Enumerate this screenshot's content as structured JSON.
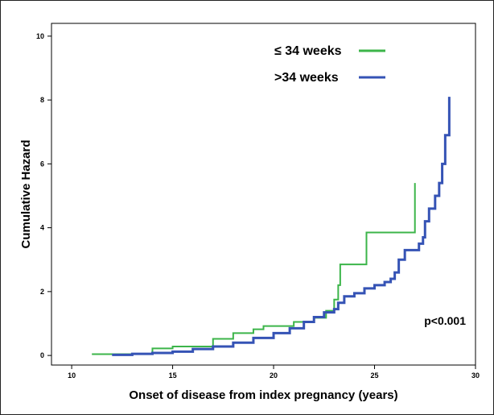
{
  "chart_data": {
    "type": "line",
    "title": "",
    "xlabel": "Onset of disease from index pregnancy (years)",
    "ylabel": "Cumulative Hazard",
    "xlim": [
      9,
      30
    ],
    "ylim": [
      -0.3,
      10.4
    ],
    "xticks": [
      10,
      15,
      20,
      25,
      30
    ],
    "yticks": [
      0,
      2,
      4,
      6,
      8,
      10
    ],
    "grid": false,
    "legend_position": "top-center",
    "annotation": "p<0.001",
    "series": [
      {
        "name": "≤ 34 weeks",
        "color": "#3cb54a",
        "step": true,
        "x": [
          11.0,
          14.0,
          15.0,
          17.0,
          18.0,
          19.0,
          19.5,
          21.0,
          22.0,
          22.6,
          23.0,
          23.2,
          23.3,
          24.6,
          27.0,
          27.0
        ],
        "y": [
          0.04,
          0.22,
          0.28,
          0.52,
          0.7,
          0.82,
          0.92,
          1.05,
          1.18,
          1.4,
          1.75,
          2.2,
          2.85,
          3.85,
          3.85,
          5.4
        ]
      },
      {
        "name": ">34 weeks",
        "color": "#3553b5",
        "step": true,
        "x": [
          12.0,
          13.0,
          14.0,
          15.0,
          16.0,
          17.0,
          18.0,
          19.0,
          20.0,
          20.8,
          21.5,
          22.0,
          22.5,
          23.0,
          23.2,
          23.5,
          24.0,
          24.5,
          25.0,
          25.5,
          25.8,
          26.0,
          26.2,
          26.5,
          27.0,
          27.2,
          27.4,
          27.5,
          27.7,
          28.0,
          28.2,
          28.35,
          28.5,
          28.7,
          28.7
        ],
        "y": [
          0.02,
          0.05,
          0.08,
          0.12,
          0.2,
          0.28,
          0.4,
          0.55,
          0.7,
          0.85,
          1.05,
          1.2,
          1.35,
          1.45,
          1.65,
          1.85,
          1.95,
          2.1,
          2.2,
          2.3,
          2.4,
          2.6,
          3.0,
          3.3,
          3.3,
          3.5,
          3.7,
          4.2,
          4.6,
          5.0,
          5.4,
          6.0,
          6.9,
          6.9,
          8.1
        ]
      }
    ]
  }
}
